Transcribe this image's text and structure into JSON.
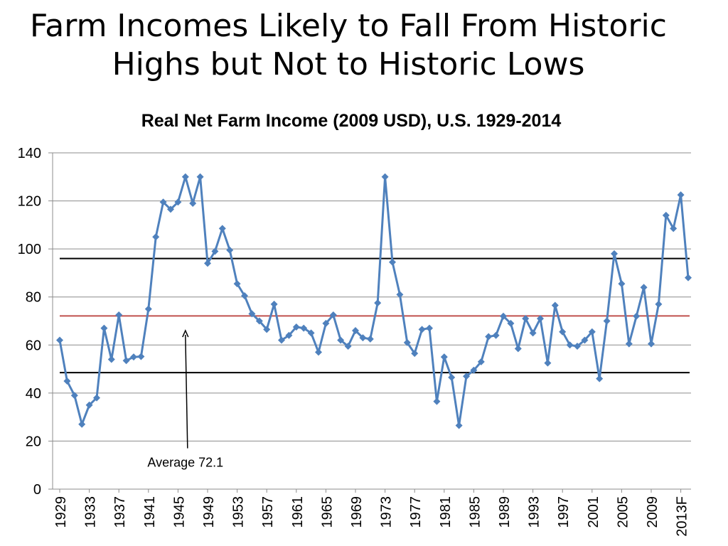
{
  "slide": {
    "title_line1": "Farm Incomes Likely to Fall From Historic",
    "title_line2": "Highs but Not to Historic Lows"
  },
  "chart_data": {
    "type": "line",
    "title": "Real Net Farm Income (2009 USD), U.S. 1929-2014",
    "xlabel": "",
    "ylabel": "",
    "ylim": [
      0,
      140
    ],
    "yticks": [
      0,
      20,
      40,
      60,
      80,
      100,
      120,
      140
    ],
    "grid": true,
    "xtick_labels": [
      "1929",
      "1933",
      "1937",
      "1941",
      "1945",
      "1949",
      "1953",
      "1957",
      "1961",
      "1965",
      "1969",
      "1973",
      "1977",
      "1981",
      "1985",
      "1989",
      "1993",
      "1997",
      "2001",
      "2005",
      "2009",
      "2013F"
    ],
    "x": [
      "1929",
      "1930",
      "1931",
      "1932",
      "1933",
      "1934",
      "1935",
      "1936",
      "1937",
      "1938",
      "1939",
      "1940",
      "1941",
      "1942",
      "1943",
      "1944",
      "1945",
      "1946",
      "1947",
      "1948",
      "1949",
      "1950",
      "1951",
      "1952",
      "1953",
      "1954",
      "1955",
      "1956",
      "1957",
      "1958",
      "1959",
      "1960",
      "1961",
      "1962",
      "1963",
      "1964",
      "1965",
      "1966",
      "1967",
      "1968",
      "1969",
      "1970",
      "1971",
      "1972",
      "1973",
      "1974",
      "1975",
      "1976",
      "1977",
      "1978",
      "1979",
      "1980",
      "1981",
      "1982",
      "1983",
      "1984",
      "1985",
      "1986",
      "1987",
      "1988",
      "1989",
      "1990",
      "1991",
      "1992",
      "1993",
      "1994",
      "1995",
      "1996",
      "1997",
      "1998",
      "1999",
      "2000",
      "2001",
      "2002",
      "2003",
      "2004",
      "2005",
      "2006",
      "2007",
      "2008",
      "2009",
      "2010",
      "2011",
      "2012",
      "2013F",
      "2014F"
    ],
    "series": [
      {
        "name": "",
        "color": "#4F81BD",
        "values": [
          62,
          45,
          39,
          27,
          35,
          38,
          67,
          54,
          72.5,
          53.5,
          55,
          55.2,
          75,
          105,
          119.5,
          116.5,
          119.5,
          130,
          119,
          130,
          94,
          99,
          108.5,
          99.5,
          85.5,
          80.5,
          73,
          70,
          66.5,
          77,
          62,
          64,
          67.5,
          67,
          65,
          57,
          69,
          72.5,
          62,
          59.5,
          66,
          63,
          62.5,
          77.5,
          130,
          94.5,
          81,
          61,
          56.5,
          66.5,
          67,
          36.5,
          55,
          46.5,
          26.5,
          47,
          49.5,
          53,
          63.5,
          64,
          72,
          69,
          58.5,
          71,
          65,
          71,
          52.5,
          76.5,
          65.5,
          60,
          59.5,
          62,
          65.5,
          46,
          70,
          98,
          85.5,
          60.5,
          72,
          84,
          60.5,
          77,
          114,
          108.5,
          122.5,
          88
        ]
      }
    ],
    "reference_lines": [
      {
        "value": 96,
        "color": "#000000"
      },
      {
        "value": 72.1,
        "color": "#C0504D"
      },
      {
        "value": 48.5,
        "color": "#000000"
      }
    ],
    "annotation": {
      "text": "Average 72.1",
      "x": "1946",
      "y_tip": 66,
      "y_base": 17
    }
  }
}
